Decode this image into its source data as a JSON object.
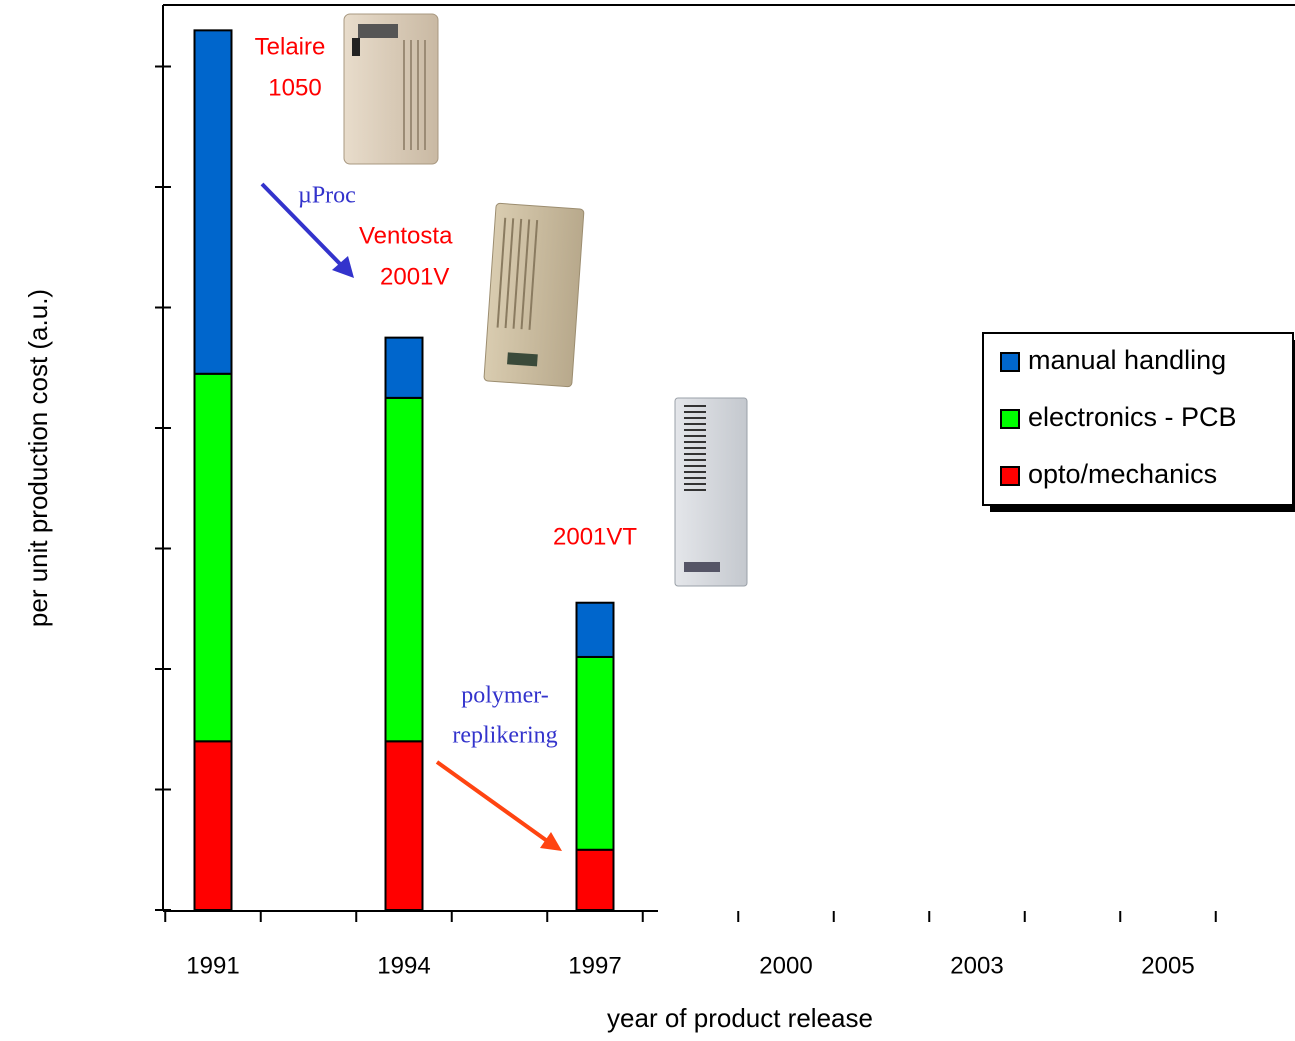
{
  "chart_data": {
    "type": "stacked_bar",
    "x_label": "year of product release",
    "y_label": "per unit production cost (a.u.)",
    "categories": [
      "1991",
      "1994",
      "1997",
      "2000",
      "2003",
      "2005"
    ],
    "series": [
      {
        "name": "opto/mechanics",
        "color": "#ff0000",
        "values": [
          1.4,
          1.4,
          0.5,
          null,
          null,
          null
        ]
      },
      {
        "name": "electronics - PCB",
        "color": "#00ff00",
        "values": [
          3.05,
          2.85,
          1.6,
          null,
          null,
          null
        ]
      },
      {
        "name": "manual handling",
        "color": "#0066cc",
        "values": [
          2.85,
          0.5,
          0.45,
          null,
          null,
          null
        ]
      }
    ],
    "ylim": [
      0,
      7.5
    ],
    "yticks": [
      0,
      1,
      2,
      3,
      4,
      5,
      6,
      7
    ],
    "annotations": {
      "telaire": [
        "Telaire",
        "1050"
      ],
      "uproc": "µProc",
      "ventostat": [
        "Ventosta",
        "2001V"
      ],
      "vt": "2001VT",
      "polymer": [
        "polymer-",
        "replikering"
      ]
    }
  }
}
